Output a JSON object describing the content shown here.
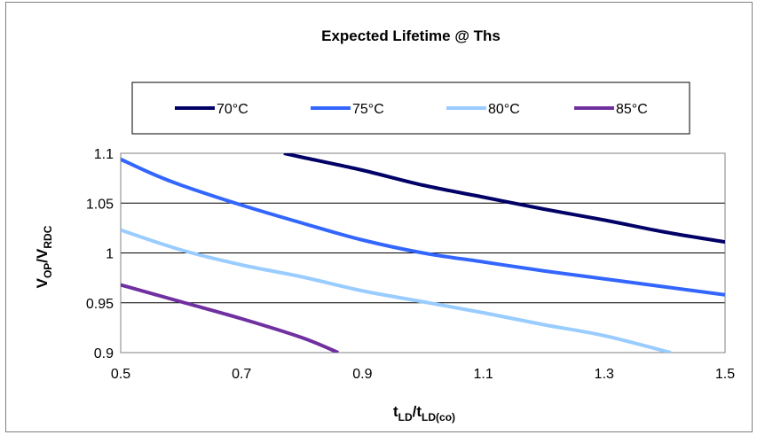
{
  "chart_data": {
    "type": "line",
    "title": "Expected Lifetime @ Ths",
    "xlabel": {
      "main": "t",
      "sub": "LD",
      "sep": "/t",
      "sub2": "LD(co)"
    },
    "ylabel": {
      "main": "V",
      "sub": "OP",
      "sep": "/V",
      "sub2": "RDC"
    },
    "xlim": [
      0.5,
      1.5
    ],
    "ylim": [
      0.9,
      1.1
    ],
    "xticks": [
      0.5,
      0.7,
      0.9,
      1.1,
      1.3,
      1.5
    ],
    "xtick_labels": [
      "0.5",
      "0.7",
      "0.9",
      "1.1",
      "1.3",
      "1.5"
    ],
    "yticks": [
      0.9,
      0.95,
      1.0,
      1.05,
      1.1
    ],
    "ytick_labels": [
      "0.9",
      "0.95",
      "1",
      "1.05",
      "1.1"
    ],
    "grid": "horizontal",
    "legend_position": "top",
    "series": [
      {
        "name": "70°C",
        "color": "#000066",
        "points": [
          [
            0.77,
            1.1
          ],
          [
            0.8,
            1.096
          ],
          [
            0.9,
            1.083
          ],
          [
            1.0,
            1.068
          ],
          [
            1.1,
            1.056
          ],
          [
            1.2,
            1.044
          ],
          [
            1.3,
            1.033
          ],
          [
            1.4,
            1.021
          ],
          [
            1.5,
            1.011
          ]
        ]
      },
      {
        "name": "75°C",
        "color": "#3366ff",
        "points": [
          [
            0.5,
            1.094
          ],
          [
            0.55,
            1.08
          ],
          [
            0.6,
            1.068
          ],
          [
            0.7,
            1.048
          ],
          [
            0.8,
            1.03
          ],
          [
            0.9,
            1.013
          ],
          [
            1.0,
            1.0
          ],
          [
            1.1,
            0.991
          ],
          [
            1.2,
            0.982
          ],
          [
            1.3,
            0.974
          ],
          [
            1.4,
            0.966
          ],
          [
            1.5,
            0.958
          ]
        ]
      },
      {
        "name": "80°C",
        "color": "#99ccff",
        "points": [
          [
            0.5,
            1.023
          ],
          [
            0.6,
            1.003
          ],
          [
            0.7,
            0.988
          ],
          [
            0.8,
            0.976
          ],
          [
            0.9,
            0.962
          ],
          [
            1.0,
            0.951
          ],
          [
            1.1,
            0.94
          ],
          [
            1.2,
            0.928
          ],
          [
            1.3,
            0.917
          ],
          [
            1.41,
            0.9
          ]
        ]
      },
      {
        "name": "85°C",
        "color": "#7030a0",
        "points": [
          [
            0.5,
            0.968
          ],
          [
            0.6,
            0.951
          ],
          [
            0.7,
            0.934
          ],
          [
            0.8,
            0.915
          ],
          [
            0.86,
            0.9
          ]
        ]
      }
    ]
  }
}
